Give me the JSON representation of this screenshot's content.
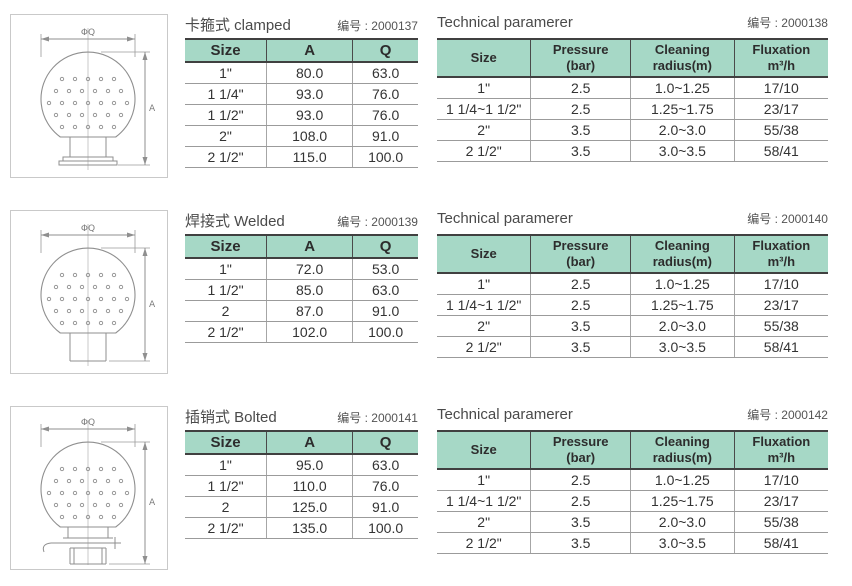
{
  "colors": {
    "header_bg": "#a6d8c6",
    "border_dark": "#404040",
    "border_light": "#9b9b9b",
    "title_text": "#4a4a4a",
    "cell_text": "#333333"
  },
  "diagram": {
    "width_label": "ΦQ",
    "height_label": "A"
  },
  "sections": [
    {
      "name": "clamped",
      "title": "卡箍式 clamped",
      "code": "编号 : 2000137",
      "dim_table": {
        "headers": [
          "Size",
          "A",
          "Q"
        ],
        "rows": [
          [
            "1\"",
            "80.0",
            "63.0"
          ],
          [
            "1 1/4\"",
            "93.0",
            "76.0"
          ],
          [
            "1 1/2\"",
            "93.0",
            "76.0"
          ],
          [
            "2\"",
            "108.0",
            "91.0"
          ],
          [
            "2 1/2\"",
            "115.0",
            "100.0"
          ]
        ]
      },
      "tech_table": {
        "title": "Technical paramerer",
        "code": "编号 : 2000138",
        "headers": [
          [
            "Size",
            ""
          ],
          [
            "Pressure",
            "(bar)"
          ],
          [
            "Cleaning",
            "radius(m)"
          ],
          [
            "Fluxation",
            "m³/h"
          ]
        ],
        "rows": [
          [
            "1\"",
            "2.5",
            "1.0~1.25",
            "17/10"
          ],
          [
            "1 1/4~1 1/2\"",
            "2.5",
            "1.25~1.75",
            "23/17"
          ],
          [
            "2\"",
            "3.5",
            "2.0~3.0",
            "55/38"
          ],
          [
            "2 1/2\"",
            "3.5",
            "3.0~3.5",
            "58/41"
          ]
        ]
      }
    },
    {
      "name": "welded",
      "title": "焊接式 Welded",
      "code": "编号 : 2000139",
      "dim_table": {
        "headers": [
          "Size",
          "A",
          "Q"
        ],
        "rows": [
          [
            "1\"",
            "72.0",
            "53.0"
          ],
          [
            "1 1/2\"",
            "85.0",
            "63.0"
          ],
          [
            "2",
            "87.0",
            "91.0"
          ],
          [
            "2 1/2\"",
            "102.0",
            "100.0"
          ]
        ]
      },
      "tech_table": {
        "title": "Technical paramerer",
        "code": "编号 : 2000140",
        "headers": [
          [
            "Size",
            ""
          ],
          [
            "Pressure",
            "(bar)"
          ],
          [
            "Cleaning",
            "radius(m)"
          ],
          [
            "Fluxation",
            "m³/h"
          ]
        ],
        "rows": [
          [
            "1\"",
            "2.5",
            "1.0~1.25",
            "17/10"
          ],
          [
            "1 1/4~1 1/2\"",
            "2.5",
            "1.25~1.75",
            "23/17"
          ],
          [
            "2\"",
            "3.5",
            "2.0~3.0",
            "55/38"
          ],
          [
            "2 1/2\"",
            "3.5",
            "3.0~3.5",
            "58/41"
          ]
        ]
      }
    },
    {
      "name": "bolted",
      "title": "插销式 Bolted",
      "code": "编号 : 2000141",
      "dim_table": {
        "headers": [
          "Size",
          "A",
          "Q"
        ],
        "rows": [
          [
            "1\"",
            "95.0",
            "63.0"
          ],
          [
            "1 1/2\"",
            "110.0",
            "76.0"
          ],
          [
            "2",
            "125.0",
            "91.0"
          ],
          [
            "2 1/2\"",
            "135.0",
            "100.0"
          ]
        ]
      },
      "tech_table": {
        "title": "Technical paramerer",
        "code": "编号 : 2000142",
        "headers": [
          [
            "Size",
            ""
          ],
          [
            "Pressure",
            "(bar)"
          ],
          [
            "Cleaning",
            "radius(m)"
          ],
          [
            "Fluxation",
            "m³/h"
          ]
        ],
        "rows": [
          [
            "1\"",
            "2.5",
            "1.0~1.25",
            "17/10"
          ],
          [
            "1 1/4~1 1/2\"",
            "2.5",
            "1.25~1.75",
            "23/17"
          ],
          [
            "2\"",
            "3.5",
            "2.0~3.0",
            "55/38"
          ],
          [
            "2 1/2\"",
            "3.5",
            "3.0~3.5",
            "58/41"
          ]
        ]
      }
    }
  ]
}
